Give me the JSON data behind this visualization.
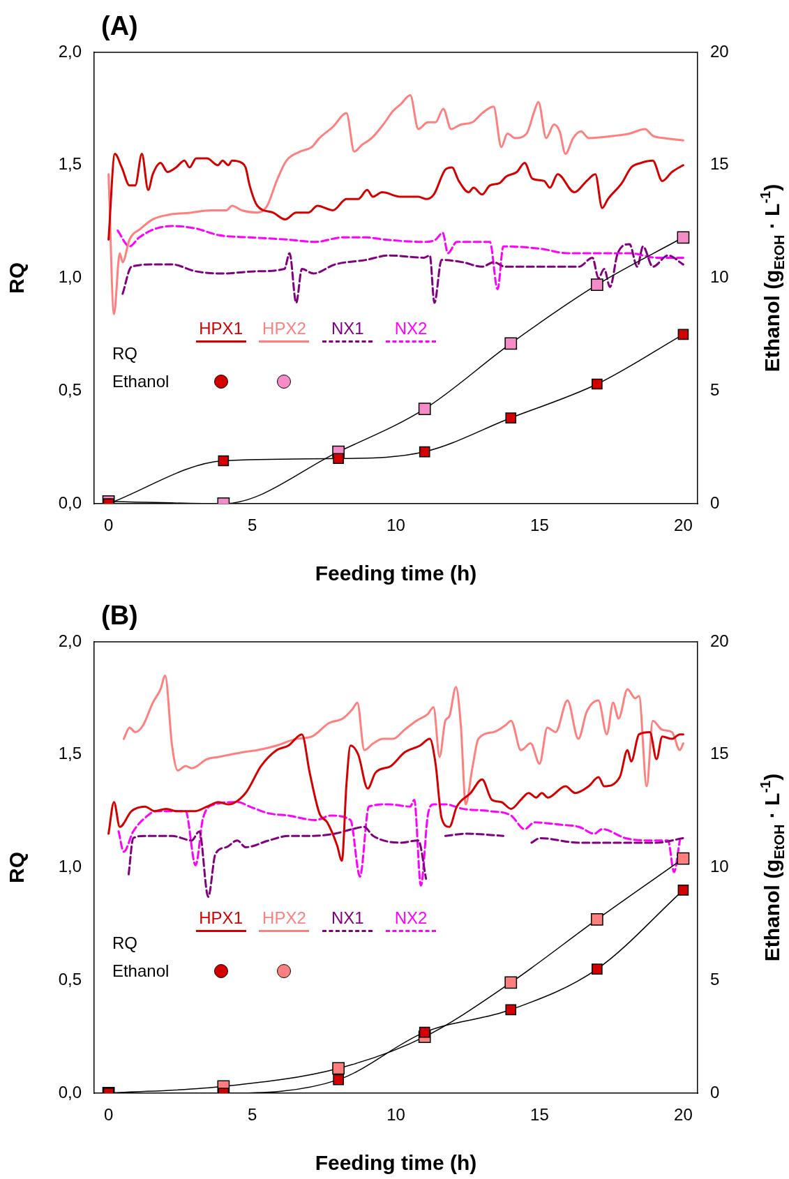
{
  "chart_data": [
    {
      "type": "line",
      "title": "(A)",
      "xlabel": "Feeding time (h)",
      "ylabel": "RQ",
      "y2label": "Ethanol (g$_{EtOH}$ · L$^{-1}$)",
      "annotations": [
        "RQ",
        "Ethanol"
      ],
      "legend": "left",
      "xlim": [
        -0.5,
        20.5
      ],
      "xticks": [
        0,
        5,
        10,
        15,
        20
      ],
      "ylim": [
        0,
        2
      ],
      "yticks": [
        {
          "value": 0,
          "label": "0,0"
        },
        {
          "value": 0.5,
          "label": "0,5"
        },
        {
          "value": 1,
          "label": "1,0"
        },
        {
          "value": 1.5,
          "label": "1,5"
        },
        {
          "value": 2,
          "label": "2,0"
        }
      ],
      "y2lim": [
        0,
        20
      ],
      "y2ticks": [
        0,
        5,
        10,
        15,
        20
      ],
      "series": [
        {
          "name": "HPX1",
          "color": "#d40000",
          "marker": "none",
          "line_style": "solid",
          "x": [
            0,
            0.22,
            0.46,
            0.73,
            0.93,
            1.16,
            1.38,
            1.54,
            1.81,
            2.05,
            2.35,
            2.64,
            2.82,
            3.05,
            3.43,
            3.8,
            3.97,
            4.17,
            4.3,
            4.64,
            4.77,
            4.91,
            5.18,
            5.72,
            6.15,
            6.53,
            6.96,
            7.27,
            7.81,
            8.28,
            8.69,
            9.0,
            9.2,
            9.52,
            10.17,
            10.78,
            11.05,
            11.32,
            11.72,
            11.95,
            12.19,
            12.53,
            12.7,
            13.0,
            13.27,
            13.6,
            13.84,
            14.21,
            14.48,
            14.75,
            15.16,
            15.36,
            15.63,
            16.21,
            16.64,
            16.94,
            17.18,
            17.38,
            17.86,
            18.19,
            18.53,
            18.94,
            19.27,
            19.61,
            20.0
          ],
          "values": [
            1.17,
            1.55,
            1.49,
            1.41,
            1.41,
            1.55,
            1.39,
            1.46,
            1.51,
            1.47,
            1.49,
            1.52,
            1.49,
            1.53,
            1.53,
            1.5,
            1.52,
            1.5,
            1.52,
            1.51,
            1.49,
            1.41,
            1.32,
            1.29,
            1.26,
            1.29,
            1.29,
            1.32,
            1.3,
            1.35,
            1.35,
            1.39,
            1.36,
            1.38,
            1.36,
            1.36,
            1.35,
            1.37,
            1.48,
            1.49,
            1.43,
            1.38,
            1.4,
            1.37,
            1.41,
            1.42,
            1.45,
            1.47,
            1.51,
            1.44,
            1.43,
            1.4,
            1.46,
            1.38,
            1.43,
            1.46,
            1.31,
            1.35,
            1.42,
            1.49,
            1.51,
            1.52,
            1.43,
            1.47,
            1.5
          ]
        },
        {
          "name": "HPX2",
          "color": "#ff7f7f",
          "marker": "none",
          "line_style": "solid",
          "x": [
            0,
            0.19,
            0.39,
            0.49,
            0.73,
            1.13,
            1.54,
            2.08,
            2.89,
            3.56,
            4.1,
            4.3,
            4.64,
            5.18,
            5.52,
            5.85,
            6.19,
            6.66,
            7.07,
            7.34,
            7.81,
            8.28,
            8.55,
            8.82,
            9.16,
            9.56,
            9.9,
            10.17,
            10.5,
            10.78,
            11.11,
            11.38,
            11.65,
            11.92,
            12.26,
            12.66,
            13.0,
            13.4,
            13.67,
            13.88,
            14.15,
            14.55,
            14.82,
            14.96,
            15.23,
            15.5,
            15.7,
            15.9,
            16.17,
            16.44,
            16.71,
            17.59,
            18.13,
            18.67,
            18.94,
            19.34,
            20.0
          ],
          "values": [
            1.46,
            0.84,
            1.11,
            1.07,
            1.17,
            1.22,
            1.26,
            1.28,
            1.29,
            1.3,
            1.3,
            1.32,
            1.3,
            1.29,
            1.32,
            1.43,
            1.52,
            1.56,
            1.58,
            1.62,
            1.67,
            1.73,
            1.56,
            1.59,
            1.62,
            1.68,
            1.74,
            1.77,
            1.81,
            1.66,
            1.69,
            1.69,
            1.75,
            1.66,
            1.68,
            1.69,
            1.73,
            1.76,
            1.58,
            1.64,
            1.62,
            1.64,
            1.74,
            1.78,
            1.62,
            1.68,
            1.65,
            1.55,
            1.62,
            1.65,
            1.62,
            1.63,
            1.64,
            1.66,
            1.63,
            1.62,
            1.61
          ]
        },
        {
          "name": "NX1",
          "color": "#800080",
          "marker": "none",
          "line_style": "dashed",
          "x": [
            0.49,
            0.8,
            1.54,
            2.21,
            3.02,
            3.97,
            5.18,
            6.12,
            6.3,
            6.53,
            6.73,
            7.13,
            7.88,
            8.95,
            9.76,
            10.98,
            11.18,
            11.34,
            11.59,
            12.33,
            13.0,
            13.4,
            13.81,
            15.02,
            16.37,
            16.84,
            17.05,
            17.25,
            17.45,
            17.72,
            18.13,
            18.4,
            18.6,
            18.94,
            19.47,
            20.0
          ],
          "values": [
            0.93,
            1.05,
            1.06,
            1.06,
            1.03,
            1.02,
            1.03,
            1.04,
            1.11,
            0.89,
            1.04,
            1.02,
            1.06,
            1.08,
            1.1,
            1.09,
            1.1,
            0.89,
            1.08,
            1.07,
            1.05,
            1.07,
            1.05,
            1.05,
            1.05,
            1.09,
            1.0,
            1.04,
            0.96,
            1.11,
            1.15,
            1.05,
            1.14,
            1.05,
            1.1,
            1.06
          ]
        },
        {
          "name": "NX2",
          "color": "#ff00ff",
          "marker": "none",
          "line_style": "dashed",
          "x": [
            0.32,
            0.73,
            1.07,
            1.67,
            2.21,
            3.02,
            3.83,
            4.91,
            6.26,
            7.2,
            8.15,
            8.95,
            9.63,
            10.98,
            11.38,
            11.63,
            11.81,
            12.12,
            13.0,
            13.27,
            13.54,
            13.74,
            15.02,
            15.97,
            17.05,
            18.13,
            19.07,
            20.0
          ],
          "values": [
            1.21,
            1.14,
            1.18,
            1.22,
            1.23,
            1.22,
            1.19,
            1.18,
            1.17,
            1.16,
            1.18,
            1.18,
            1.17,
            1.16,
            1.17,
            1.2,
            1.11,
            1.16,
            1.16,
            1.16,
            0.95,
            1.14,
            1.13,
            1.11,
            1.11,
            1.11,
            1.09,
            1.09
          ]
        },
        {
          "color": "#d40000",
          "axis": "y2",
          "marker": "square",
          "line_style": "solid",
          "x": [
            0,
            4,
            8,
            11,
            14,
            17,
            20
          ],
          "values": [
            0,
            1.9,
            2.0,
            2.3,
            3.8,
            5.3,
            7.5
          ]
        },
        {
          "color": "#f58cc8",
          "axis": "y2",
          "marker": "square",
          "line_style": "solid",
          "x": [
            0,
            4,
            8,
            11,
            14,
            17,
            20
          ],
          "values": [
            0.1,
            0,
            2.3,
            4.2,
            7.1,
            9.7,
            11.8
          ]
        }
      ]
    },
    {
      "type": "line",
      "title": "(B)",
      "xlabel": "Feeding time (h)",
      "ylabel": "RQ",
      "y2label": "Ethanol (g$_{EtOH}$ · L$^{-1}$)",
      "annotations": [
        "RQ",
        "Ethanol"
      ],
      "legend": "left",
      "xlim": [
        -0.5,
        20.5
      ],
      "xticks": [
        0,
        5,
        10,
        15,
        20
      ],
      "ylim": [
        0,
        2
      ],
      "yticks": [
        {
          "value": 0,
          "label": "0,0"
        },
        {
          "value": 0.5,
          "label": "0,5"
        },
        {
          "value": 1,
          "label": "1,0"
        },
        {
          "value": 1.5,
          "label": "1,5"
        },
        {
          "value": 2,
          "label": "2,0"
        }
      ],
      "y2lim": [
        0,
        20
      ],
      "y2ticks": [
        0,
        5,
        10,
        15,
        20
      ],
      "series": [
        {
          "name": "HPX1",
          "color": "#d40000",
          "marker": "none",
          "line_style": "solid",
          "x": [
            0,
            0.19,
            0.39,
            0.8,
            1.27,
            1.6,
            2.01,
            2.35,
            3.02,
            3.43,
            3.83,
            4.17,
            4.77,
            5.31,
            5.85,
            6.26,
            6.73,
            7.0,
            7.34,
            7.61,
            7.95,
            8.12,
            8.28,
            8.42,
            8.69,
            9.02,
            9.29,
            9.83,
            10.3,
            10.84,
            11.18,
            11.38,
            11.59,
            11.86,
            12.12,
            12.6,
            13.0,
            13.34,
            13.67,
            14.01,
            14.35,
            14.62,
            14.88,
            15.08,
            15.29,
            15.9,
            16.24,
            16.71,
            17.05,
            17.25,
            17.79,
            18.06,
            18.19,
            18.46,
            18.84,
            19.07,
            19.27,
            19.61,
            19.88,
            20.0
          ],
          "values": [
            1.15,
            1.29,
            1.18,
            1.25,
            1.27,
            1.25,
            1.26,
            1.25,
            1.25,
            1.27,
            1.29,
            1.28,
            1.33,
            1.45,
            1.52,
            1.54,
            1.59,
            1.42,
            1.24,
            1.2,
            1.1,
            1.03,
            1.37,
            1.54,
            1.5,
            1.35,
            1.42,
            1.45,
            1.51,
            1.54,
            1.57,
            1.46,
            1.22,
            1.18,
            1.27,
            1.33,
            1.39,
            1.3,
            1.29,
            1.26,
            1.3,
            1.33,
            1.31,
            1.33,
            1.31,
            1.36,
            1.33,
            1.36,
            1.4,
            1.36,
            1.4,
            1.52,
            1.47,
            1.59,
            1.6,
            1.48,
            1.58,
            1.57,
            1.59,
            1.59
          ]
        },
        {
          "name": "HPX2",
          "color": "#ff7f7f",
          "marker": "none",
          "line_style": "solid",
          "x": [
            0.53,
            0.73,
            0.93,
            1.2,
            1.54,
            1.81,
            1.97,
            2.21,
            2.41,
            2.68,
            2.89,
            3.43,
            3.83,
            4.23,
            4.64,
            5.18,
            5.85,
            6.53,
            7.07,
            7.67,
            8.15,
            8.48,
            8.66,
            8.9,
            9.21,
            9.56,
            9.9,
            10.3,
            10.71,
            11.11,
            11.31,
            11.52,
            11.72,
            11.86,
            12.09,
            12.26,
            12.43,
            12.66,
            12.87,
            13.4,
            13.81,
            14.01,
            14.35,
            14.69,
            15.0,
            15.27,
            15.56,
            15.97,
            16.35,
            16.64,
            17.05,
            17.34,
            17.56,
            17.75,
            18.06,
            18.33,
            18.46,
            18.73,
            18.94,
            19.27,
            19.61,
            19.88,
            20.0
          ],
          "values": [
            1.57,
            1.62,
            1.6,
            1.63,
            1.73,
            1.79,
            1.85,
            1.54,
            1.43,
            1.45,
            1.44,
            1.48,
            1.49,
            1.5,
            1.51,
            1.52,
            1.54,
            1.57,
            1.58,
            1.64,
            1.66,
            1.7,
            1.73,
            1.52,
            1.55,
            1.57,
            1.57,
            1.61,
            1.65,
            1.68,
            1.71,
            1.49,
            1.65,
            1.67,
            1.8,
            1.63,
            1.28,
            1.44,
            1.57,
            1.6,
            1.63,
            1.65,
            1.52,
            1.55,
            1.46,
            1.62,
            1.6,
            1.74,
            1.57,
            1.69,
            1.74,
            1.59,
            1.73,
            1.66,
            1.79,
            1.75,
            1.76,
            1.36,
            1.65,
            1.61,
            1.6,
            1.52,
            1.55
          ]
        },
        {
          "name": "NX1",
          "color": "#800080",
          "marker": "none",
          "line_style": "dashed",
          "x": [
            0.7,
            0.86,
            1.27,
            2.21,
            2.89,
            3.16,
            3.47,
            3.72,
            4.1,
            4.48,
            4.77,
            5.58,
            6.26,
            7.07,
            7.88,
            8.48,
            8.89,
            9.21,
            10.17,
            10.78,
            11.05,
            11.4,
            11.72,
            12.46,
            13.74,
            14.2,
            14.72,
            15.02,
            16.37,
            17.72,
            19.07,
            19.99
          ],
          "values": [
            0.97,
            1.13,
            1.14,
            1.14,
            1.12,
            1.16,
            0.87,
            1.06,
            1.09,
            1.12,
            1.09,
            1.12,
            1.14,
            1.14,
            1.15,
            1.17,
            1.18,
            1.14,
            1.11,
            1.12,
            0.95,
            null,
            1.14,
            1.15,
            1.14,
            null,
            1.11,
            1.13,
            1.11,
            1.11,
            1.11,
            1.13
          ]
        },
        {
          "name": "NX2",
          "color": "#ff00ff",
          "marker": "none",
          "line_style": "dashed",
          "x": [
            0.35,
            0.53,
            0.86,
            1.27,
            1.67,
            2.68,
            3.03,
            3.29,
            3.7,
            4.5,
            4.91,
            5.58,
            6.26,
            7.2,
            7.74,
            8.42,
            8.75,
            9.06,
            9.76,
            10.5,
            10.64,
            10.87,
            11.11,
            11.31,
            11.72,
            12.33,
            13.27,
            14.01,
            14.48,
            14.82,
            15.7,
            16.37,
            16.91,
            17.18,
            17.99,
            18.67,
            19.47,
            19.68,
            19.88
          ],
          "values": [
            1.16,
            1.07,
            1.16,
            1.22,
            1.25,
            1.25,
            1.01,
            1.22,
            1.28,
            1.29,
            1.27,
            1.24,
            1.23,
            1.21,
            1.23,
            1.21,
            0.96,
            1.27,
            1.28,
            1.27,
            1.3,
            0.92,
            1.23,
            1.28,
            1.28,
            1.26,
            1.25,
            1.23,
            1.17,
            1.2,
            1.19,
            1.18,
            1.15,
            1.17,
            1.13,
            1.12,
            1.12,
            0.98,
            1.12
          ]
        },
        {
          "color": "#d40000",
          "axis": "y2",
          "marker": "square",
          "line_style": "solid",
          "x": [
            0,
            4,
            8,
            11,
            14,
            17,
            20
          ],
          "values": [
            0,
            0,
            0.6,
            2.7,
            3.7,
            5.5,
            9.0
          ]
        },
        {
          "color": "#ff7f7f",
          "axis": "y2",
          "marker": "square",
          "line_style": "solid",
          "x": [
            0,
            4,
            8,
            11,
            14,
            17,
            20
          ],
          "values": [
            0,
            0.3,
            1.1,
            2.5,
            4.9,
            7.7,
            10.4
          ]
        }
      ]
    }
  ]
}
